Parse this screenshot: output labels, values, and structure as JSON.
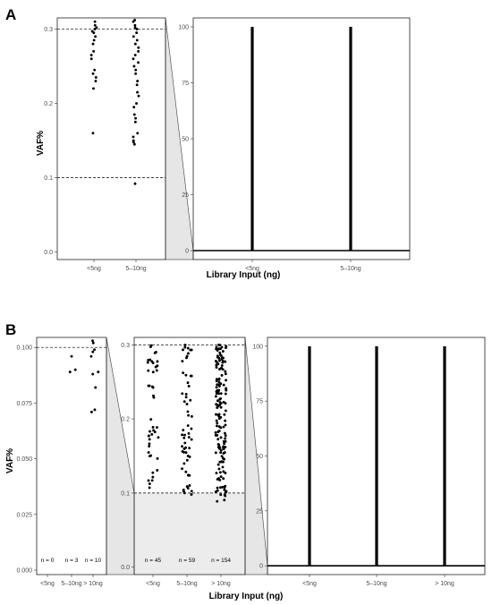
{
  "panels": [
    {
      "label": "A",
      "ylabel": "VAF%",
      "xlabel": "Library Input (ng)",
      "charts": [
        {
          "type": "scatter",
          "ylim": [
            -0.01,
            0.315
          ],
          "yticks": [
            0.0,
            0.1,
            0.2,
            0.3
          ],
          "tick_labels": [
            "0.0",
            "0.1",
            "0.2",
            "0.3"
          ],
          "categories": [
            "<5ng",
            "5–10ng"
          ],
          "hlines": [
            0.1,
            0.3
          ],
          "series": [
            {
              "values": [
                0.16,
                0.22,
                0.23,
                0.235,
                0.24,
                0.245,
                0.26,
                0.265,
                0.27,
                0.28,
                0.285,
                0.29,
                0.295,
                0.297,
                0.3,
                0.302,
                0.305,
                0.31
              ]
            },
            {
              "values": [
                0.092,
                0.145,
                0.148,
                0.15,
                0.155,
                0.16,
                0.175,
                0.18,
                0.185,
                0.195,
                0.2,
                0.21,
                0.215,
                0.225,
                0.23,
                0.24,
                0.245,
                0.25,
                0.255,
                0.26,
                0.265,
                0.27,
                0.275,
                0.28,
                0.285,
                0.29,
                0.295,
                0.3,
                0.302,
                0.305,
                0.31,
                0.312
              ]
            }
          ]
        },
        {
          "type": "scatter",
          "ylim": [
            -4,
            104
          ],
          "yticks": [
            0,
            25,
            50,
            75,
            100
          ],
          "tick_labels": [
            "0",
            "25",
            "50",
            "75",
            "100"
          ],
          "categories": [
            "<5ng",
            "5–10ng"
          ],
          "hlines": [
            0
          ],
          "series": [
            {
              "range": [
                0,
                100
              ]
            },
            {
              "range": [
                0,
                100
              ]
            }
          ]
        }
      ]
    },
    {
      "label": "B",
      "ylabel": "VAF%",
      "xlabel": "Library Input (ng)",
      "charts": [
        {
          "type": "scatter",
          "ylim": [
            -0.002,
            0.1045
          ],
          "yticks": [
            0.0,
            0.025,
            0.05,
            0.075,
            0.1
          ],
          "tick_labels": [
            "0.000",
            "0.025",
            "0.050",
            "0.075",
            "0.100"
          ],
          "categories": [
            "<5ng",
            "5–10ng",
            "> 10ng"
          ],
          "hlines": [
            0.1
          ],
          "counts": [
            "n = 0",
            "n = 3",
            "n = 10"
          ],
          "series": [
            {
              "values": []
            },
            {
              "values": [
                0.089,
                0.09,
                0.096
              ]
            },
            {
              "values": [
                0.071,
                0.072,
                0.082,
                0.088,
                0.089,
                0.096,
                0.098,
                0.099,
                0.102,
                0.103
              ]
            }
          ]
        },
        {
          "type": "scatter",
          "ylim": [
            -0.01,
            0.31
          ],
          "yticks": [
            0.0,
            0.1,
            0.2,
            0.3
          ],
          "tick_labels": [
            "0.0",
            "0.1",
            "0.2",
            "0.3"
          ],
          "categories": [
            "<5ng",
            "5–10ng",
            "> 10ng"
          ],
          "hlines": [
            0.1,
            0.3
          ],
          "counts": [
            "n = 45",
            "n = 59",
            "n = 154"
          ],
          "series": [
            {
              "n": 45,
              "min": 0.105,
              "max": 0.3
            },
            {
              "n": 59,
              "min": 0.095,
              "max": 0.3
            },
            {
              "n": 154,
              "min": 0.085,
              "max": 0.3
            }
          ]
        },
        {
          "type": "scatter",
          "ylim": [
            -4,
            104
          ],
          "yticks": [
            0,
            25,
            50,
            75,
            100
          ],
          "tick_labels": [
            "0",
            "25",
            "50",
            "75",
            "100"
          ],
          "categories": [
            "<5ng",
            "5–10ng",
            "> 10ng"
          ],
          "hlines": [
            0
          ],
          "series": [
            {
              "range": [
                0,
                100
              ]
            },
            {
              "range": [
                0,
                100
              ]
            },
            {
              "range": [
                0,
                100
              ]
            }
          ]
        }
      ]
    }
  ]
}
